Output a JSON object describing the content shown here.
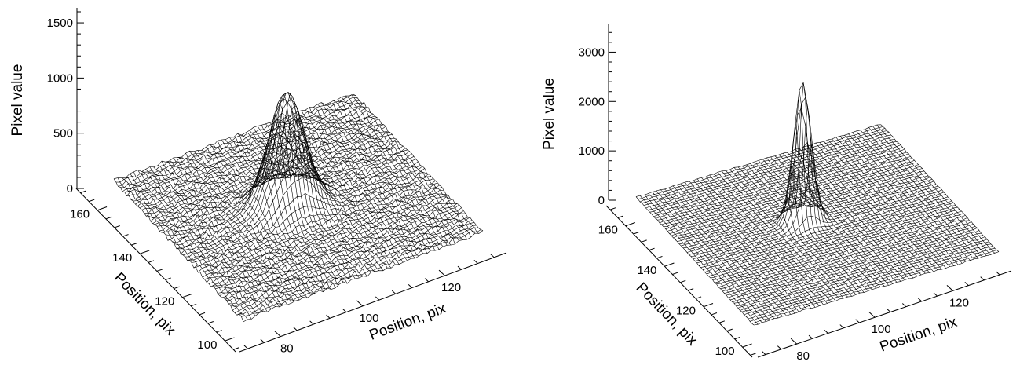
{
  "chart_data": [
    {
      "type": "surface",
      "zlabel": "Pixel value",
      "xlabel": "Position, pix",
      "ylabel": "Position, pix",
      "zlim": [
        0,
        1600
      ],
      "z_ticks": [
        0,
        500,
        1000,
        1500
      ],
      "x_ticks": [
        80,
        100,
        120
      ],
      "y_ticks": [
        100,
        120,
        140,
        160
      ],
      "xlim": [
        70,
        135
      ],
      "ylim": [
        95,
        170
      ],
      "grid": true,
      "peak": {
        "x": 100,
        "y": 134,
        "value": 1050,
        "width": 4.5
      },
      "noise": 18
    },
    {
      "type": "surface",
      "zlabel": "Pixel value",
      "xlabel": "Position, pix",
      "ylabel": "Position, pix",
      "zlim": [
        0,
        3500
      ],
      "z_ticks": [
        0,
        1000,
        2000,
        3000
      ],
      "x_ticks": [
        80,
        100,
        120
      ],
      "y_ticks": [
        100,
        120,
        140,
        160
      ],
      "xlim": [
        70,
        135
      ],
      "ylim": [
        95,
        170
      ],
      "grid": true,
      "peak": {
        "x": 100,
        "y": 136,
        "value": 2850,
        "width": 2.2
      },
      "noise": 12
    }
  ]
}
